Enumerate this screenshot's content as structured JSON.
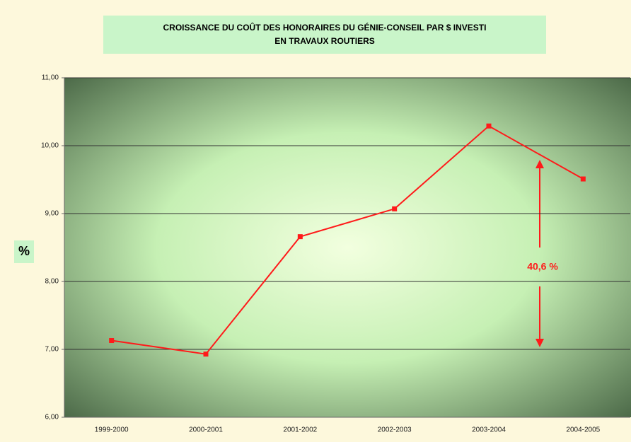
{
  "chart_data": {
    "type": "line",
    "title": [
      "CROISSANCE DU COÛT DES HONORAIRES DU GÉNIE-CONSEIL PAR $ INVESTI",
      "EN TRAVAUX ROUTIERS"
    ],
    "y_label": "%",
    "annotation": "40,6 %",
    "categories": [
      "1999-2000",
      "2000-2001",
      "2001-2002",
      "2002-2003",
      "2003-2004",
      "2004-2005"
    ],
    "series": [
      {
        "color": "#ff1a1a",
        "values": [
          7.13,
          6.93,
          8.66,
          9.07,
          10.29,
          9.51
        ]
      }
    ],
    "ylim": [
      6,
      11
    ],
    "yticks": [
      {
        "value": 6,
        "label": "6,00"
      },
      {
        "value": 7,
        "label": "7,00"
      },
      {
        "value": 8,
        "label": "8,00"
      },
      {
        "value": 9,
        "label": "9,00"
      },
      {
        "value": 10,
        "label": "10,00"
      },
      {
        "value": 11,
        "label": "11,00"
      }
    ],
    "grid": true
  }
}
